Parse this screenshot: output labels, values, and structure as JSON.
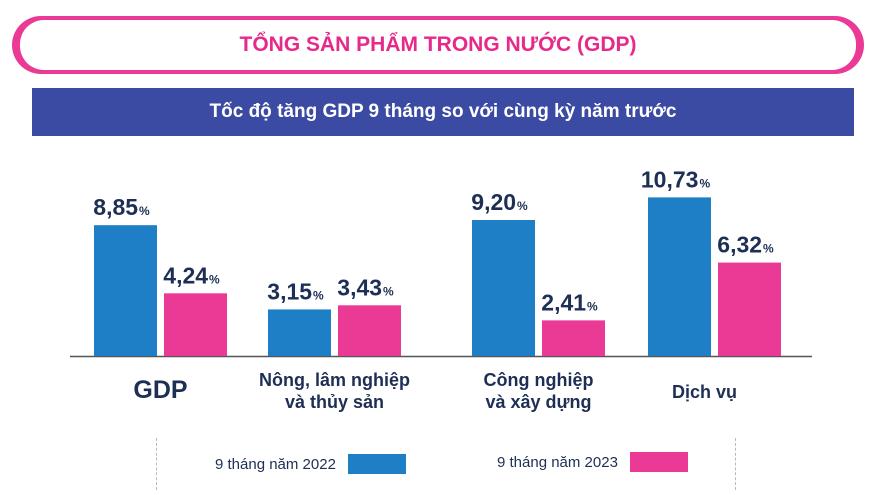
{
  "header": {
    "title": "TỔNG SẢN PHẨM TRONG NƯỚC (GDP)",
    "subtitle": "Tốc độ tăng GDP 9 tháng so với cùng kỳ năm trước"
  },
  "colors": {
    "series_2022": "#1f7fc6",
    "series_2023": "#ea3a96",
    "title_border": "#ea3a96",
    "subtitle_bg": "#3b4aa3"
  },
  "chart_data": {
    "type": "bar",
    "categories": [
      [
        "GDP"
      ],
      [
        "Nông, lâm nghiệp",
        "và thủy sản"
      ],
      [
        "Công nghiệp",
        "và xây dựng"
      ],
      [
        "Dịch vụ"
      ]
    ],
    "series": [
      {
        "name": "9 tháng năm 2022",
        "values": [
          8.85,
          3.15,
          9.2,
          10.73
        ],
        "labels": [
          "8,85",
          "3,15",
          "9,20",
          "10,73"
        ]
      },
      {
        "name": "9 tháng năm 2023",
        "values": [
          4.24,
          3.43,
          2.41,
          6.32
        ],
        "labels": [
          "4,24",
          "3,43",
          "2,41",
          "6,32"
        ]
      }
    ],
    "unit": "%",
    "title": "Tốc độ tăng GDP 9 tháng so với cùng kỳ năm trước",
    "ylim": [
      0,
      11.5
    ],
    "grid": false,
    "legend": "bottom"
  },
  "legend": {
    "item_2022": "9 tháng năm 2022",
    "item_2023": "9 tháng năm 2023"
  }
}
